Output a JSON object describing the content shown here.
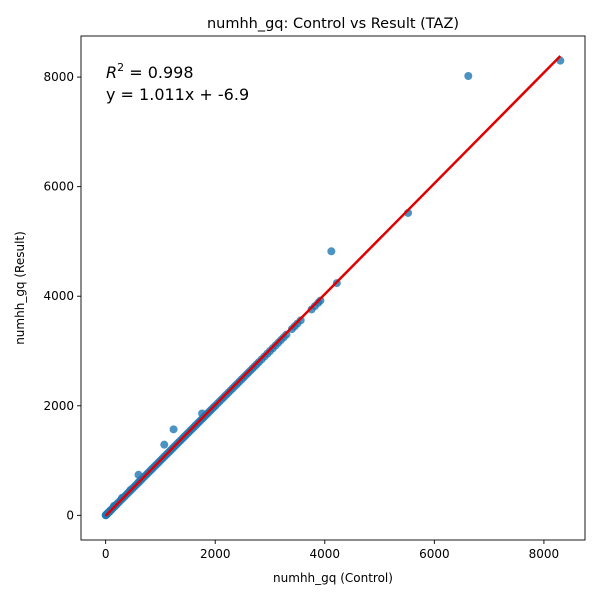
{
  "chart_data": {
    "type": "scatter",
    "title": "numhh_gq: Control vs Result (TAZ)",
    "xlabel": "numhh_gq (Control)",
    "ylabel": "numhh_gq (Result)",
    "xlim": [
      -450,
      8750
    ],
    "ylim": [
      -450,
      8750
    ],
    "xticks": [
      0,
      2000,
      4000,
      6000,
      8000
    ],
    "yticks": [
      0,
      2000,
      4000,
      6000,
      8000
    ],
    "grid": false,
    "point_color": "#1f77b4",
    "line_color": "#e00000",
    "annotation": {
      "r2_prefix": "R",
      "r2_sup": "2",
      "r2_value": " = 0.998",
      "equation": "y = 1.011x + -6.9"
    },
    "fit": {
      "slope": 1.011,
      "intercept": -6.9,
      "x_range": [
        0,
        8300
      ]
    },
    "series": [
      {
        "x": [
          0,
          5,
          10,
          15,
          20,
          25,
          30,
          40,
          50,
          60,
          75,
          90,
          100,
          120,
          140,
          160,
          180,
          200,
          225,
          250,
          280,
          310,
          340,
          370,
          400,
          430,
          460,
          490,
          520,
          550,
          580,
          600,
          620,
          650,
          680,
          710,
          740,
          770,
          800,
          830,
          860,
          890,
          920,
          950,
          980,
          1010,
          1040,
          1070,
          1100,
          1130,
          1160,
          1190,
          1220,
          1250,
          1280,
          1310,
          1340,
          1370,
          1400,
          1430,
          1460,
          1490,
          1520,
          1550,
          1580,
          1610,
          1640,
          1670,
          1700,
          1730,
          1760,
          1790,
          1820,
          1850,
          1880,
          1910,
          1940,
          1970,
          2000,
          2040,
          2080,
          2120,
          2160,
          2200,
          2240,
          2280,
          2320,
          2360,
          2400,
          2440,
          2480,
          2520,
          2560,
          2600,
          2640,
          2680,
          2720,
          2760,
          2800,
          2850,
          2900,
          2950,
          3000,
          3050,
          3100,
          3150,
          3200,
          3250,
          3300,
          3400,
          3450,
          3500,
          3560,
          3760,
          3820,
          3880,
          3920,
          4220,
          5520,
          8300,
          600,
          1070,
          1240,
          1760,
          4120,
          6620,
          150,
          300,
          450
        ],
        "y": [
          0,
          5,
          10,
          15,
          20,
          25,
          30,
          40,
          50,
          60,
          75,
          90,
          100,
          120,
          140,
          160,
          180,
          200,
          225,
          250,
          280,
          310,
          340,
          370,
          400,
          430,
          460,
          490,
          520,
          550,
          580,
          600,
          620,
          650,
          680,
          710,
          740,
          770,
          800,
          830,
          860,
          890,
          920,
          950,
          980,
          1010,
          1040,
          1070,
          1100,
          1130,
          1160,
          1190,
          1220,
          1250,
          1280,
          1310,
          1340,
          1370,
          1400,
          1430,
          1460,
          1490,
          1520,
          1550,
          1580,
          1610,
          1640,
          1670,
          1700,
          1730,
          1760,
          1790,
          1820,
          1850,
          1880,
          1910,
          1940,
          1970,
          2000,
          2040,
          2080,
          2120,
          2160,
          2200,
          2240,
          2280,
          2320,
          2360,
          2400,
          2440,
          2480,
          2520,
          2560,
          2600,
          2640,
          2680,
          2720,
          2760,
          2800,
          2850,
          2900,
          2950,
          3000,
          3050,
          3100,
          3150,
          3200,
          3250,
          3300,
          3400,
          3450,
          3500,
          3560,
          3760,
          3820,
          3880,
          3920,
          4240,
          5520,
          8300,
          740,
          1290,
          1570,
          1860,
          4820,
          8020,
          170,
          320,
          460
        ]
      }
    ]
  }
}
